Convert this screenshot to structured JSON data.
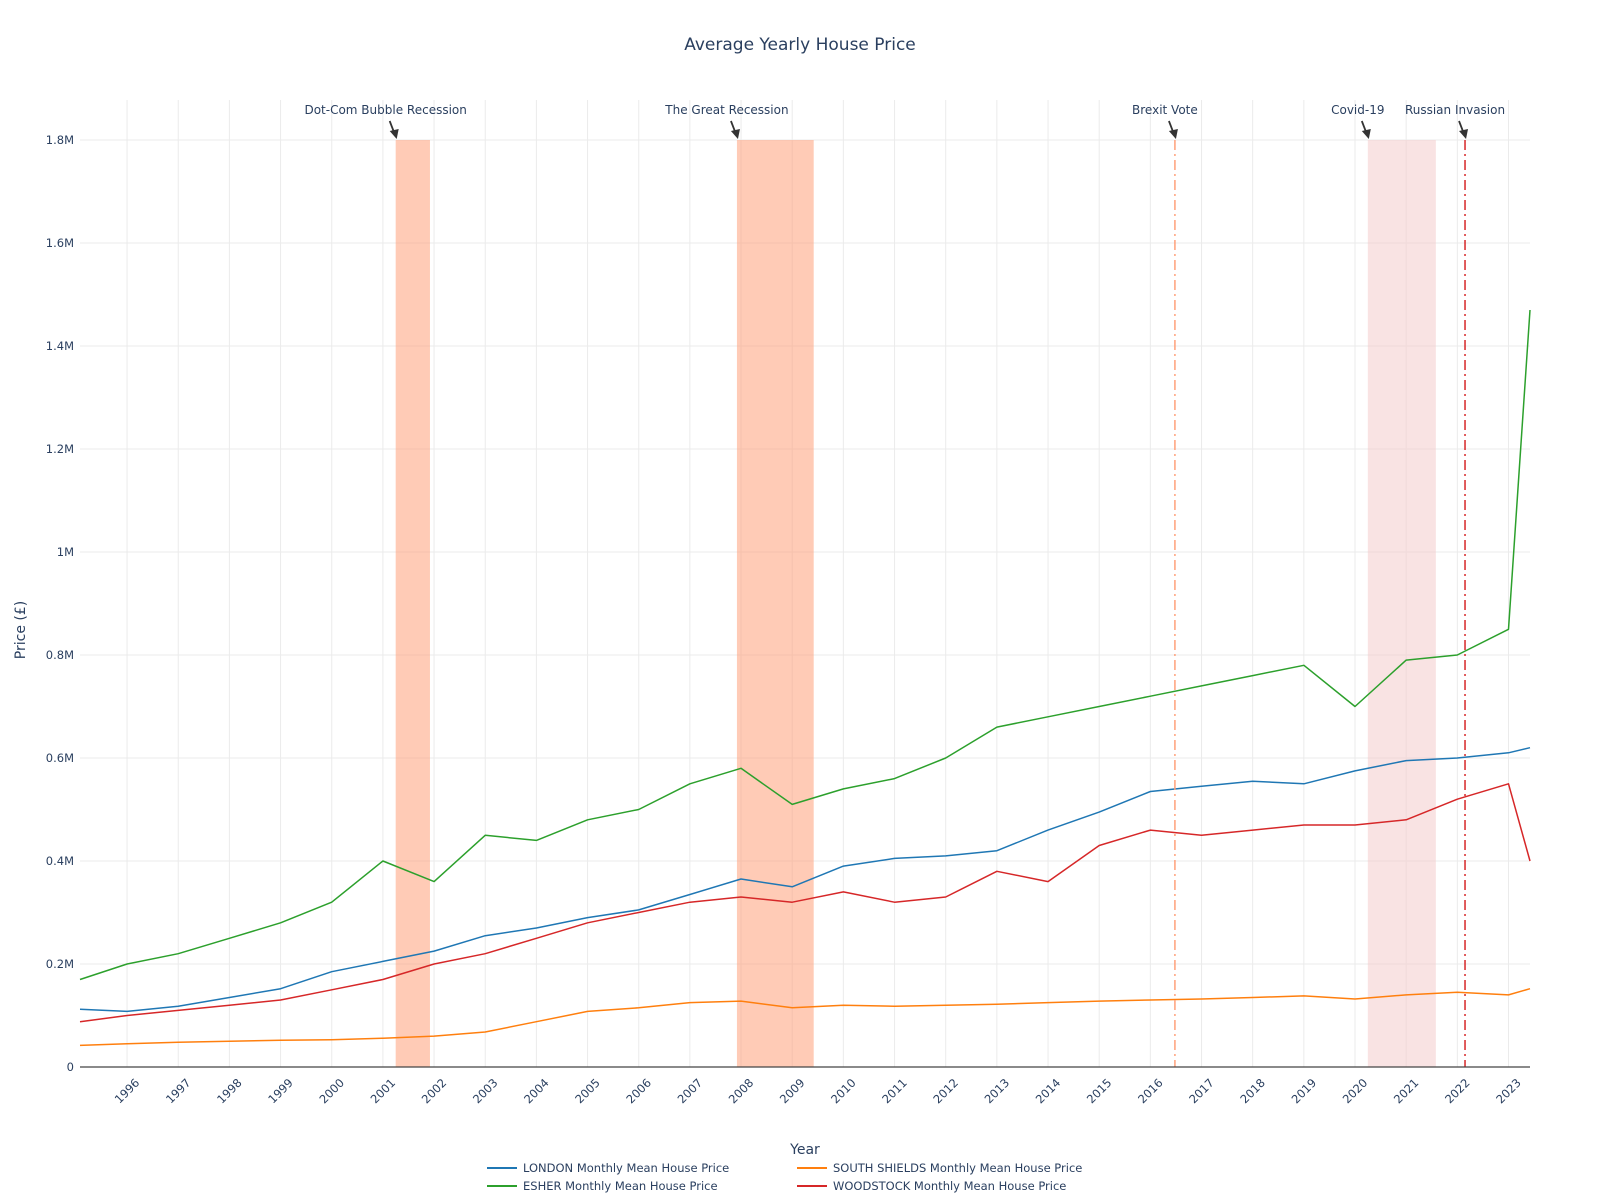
{
  "chart_data": {
    "type": "line",
    "title": "Average Yearly House Price",
    "xlabel": "Year",
    "ylabel": "Price (£)",
    "x_range": [
      1995.08,
      2023.42
    ],
    "ylim": [
      0,
      1800000
    ],
    "y_ticks": [
      {
        "value": 0,
        "label": "0"
      },
      {
        "value": 200000,
        "label": "0.2M"
      },
      {
        "value": 400000,
        "label": "0.4M"
      },
      {
        "value": 600000,
        "label": "0.6M"
      },
      {
        "value": 800000,
        "label": "0.8M"
      },
      {
        "value": 1000000,
        "label": "1M"
      },
      {
        "value": 1200000,
        "label": "1.2M"
      },
      {
        "value": 1400000,
        "label": "1.4M"
      },
      {
        "value": 1600000,
        "label": "1.6M"
      },
      {
        "value": 1800000,
        "label": "1.8M"
      }
    ],
    "x_ticks": [
      "1996",
      "1997",
      "1998",
      "1999",
      "2000",
      "2001",
      "2002",
      "2003",
      "2004",
      "2005",
      "2006",
      "2007",
      "2008",
      "2009",
      "2010",
      "2011",
      "2012",
      "2013",
      "2014",
      "2015",
      "2016",
      "2017",
      "2018",
      "2019",
      "2020",
      "2021",
      "2022",
      "2023"
    ],
    "grid": true,
    "legend_position": "bottom",
    "series": [
      {
        "name": "LONDON Monthly Mean House Price",
        "color": "#1f77b4",
        "x": [
          1995.08,
          1996,
          1997,
          1998,
          1999,
          2000,
          2001,
          2002,
          2003,
          2004,
          2005,
          2006,
          2007,
          2008,
          2009,
          2010,
          2011,
          2012,
          2013,
          2014,
          2015,
          2016,
          2017,
          2018,
          2019,
          2020,
          2021,
          2022,
          2023,
          2023.42
        ],
        "y": [
          112000,
          108000,
          118000,
          135000,
          152000,
          185000,
          205000,
          225000,
          255000,
          270000,
          290000,
          305000,
          335000,
          365000,
          350000,
          390000,
          405000,
          410000,
          420000,
          460000,
          495000,
          535000,
          545000,
          555000,
          550000,
          575000,
          595000,
          600000,
          610000,
          620000
        ]
      },
      {
        "name": "SOUTH SHIELDS Monthly Mean House Price",
        "color": "#ff7f0e",
        "x": [
          1995.08,
          1996,
          1997,
          1998,
          1999,
          2000,
          2001,
          2002,
          2003,
          2004,
          2005,
          2006,
          2007,
          2008,
          2009,
          2010,
          2011,
          2012,
          2013,
          2014,
          2015,
          2016,
          2017,
          2018,
          2019,
          2020,
          2021,
          2022,
          2023,
          2023.42
        ],
        "y": [
          42000,
          45000,
          48000,
          50000,
          52000,
          53000,
          56000,
          60000,
          68000,
          88000,
          108000,
          115000,
          125000,
          128000,
          115000,
          120000,
          118000,
          120000,
          122000,
          125000,
          128000,
          130000,
          132000,
          135000,
          138000,
          132000,
          140000,
          145000,
          140000,
          152000
        ]
      },
      {
        "name": "ESHER Monthly Mean House Price",
        "color": "#2ca02c",
        "x": [
          1995.08,
          1996,
          1997,
          1998,
          1999,
          2000,
          2001,
          2002,
          2003,
          2004,
          2005,
          2006,
          2007,
          2008,
          2009,
          2010,
          2011,
          2012,
          2013,
          2014,
          2015,
          2016,
          2017,
          2018,
          2019,
          2020,
          2021,
          2022,
          2023,
          2023.42
        ],
        "y": [
          170000,
          200000,
          220000,
          250000,
          280000,
          320000,
          400000,
          360000,
          450000,
          440000,
          480000,
          500000,
          550000,
          580000,
          510000,
          540000,
          560000,
          600000,
          660000,
          680000,
          700000,
          720000,
          740000,
          760000,
          780000,
          700000,
          790000,
          800000,
          850000,
          1470000
        ]
      },
      {
        "name": "WOODSTOCK Monthly Mean House Price",
        "color": "#d62728",
        "x": [
          1995.08,
          1996,
          1997,
          1998,
          1999,
          2000,
          2001,
          2002,
          2003,
          2004,
          2005,
          2006,
          2007,
          2008,
          2009,
          2010,
          2011,
          2012,
          2013,
          2014,
          2015,
          2016,
          2017,
          2018,
          2019,
          2020,
          2021,
          2022,
          2023,
          2023.42
        ],
        "y": [
          88000,
          100000,
          110000,
          120000,
          130000,
          150000,
          170000,
          200000,
          220000,
          250000,
          280000,
          300000,
          320000,
          330000,
          320000,
          340000,
          320000,
          330000,
          380000,
          360000,
          430000,
          460000,
          450000,
          460000,
          470000,
          470000,
          480000,
          520000,
          550000,
          400000
        ]
      }
    ],
    "shaded_periods": [
      {
        "start": 2001.25,
        "end": 2001.92,
        "color": "#ffa07a",
        "label": "Dot-Com Bubble Recession"
      },
      {
        "start": 2007.92,
        "end": 2009.42,
        "color": "#ffa07a",
        "label": "The Great Recession"
      },
      {
        "start": 2020.25,
        "end": 2021.58,
        "color": "#f4cccc",
        "label": "Covid-19"
      }
    ],
    "vertical_lines": [
      {
        "x": 2016.48,
        "color": "#ffa07a",
        "label": "Brexit Vote"
      },
      {
        "x": 2022.15,
        "color": "#d62728",
        "label": "Russian Invasion"
      }
    ]
  }
}
